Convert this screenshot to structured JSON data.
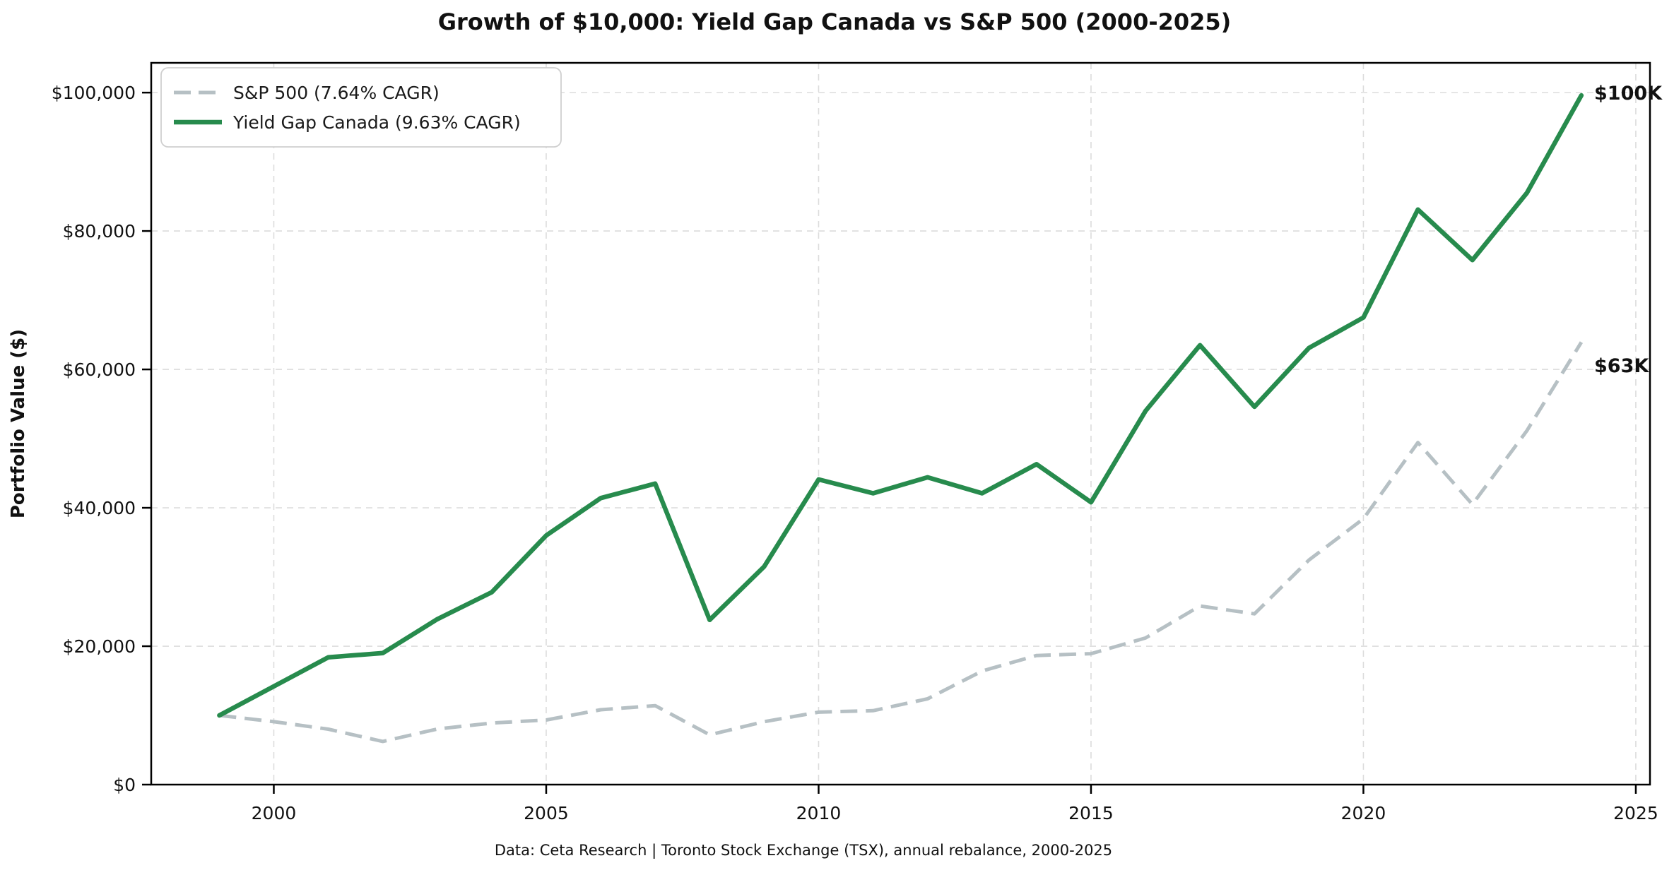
{
  "title": "Growth of $10,000: Yield Gap Canada vs S&P 500 (2000-2025)",
  "footer": "Data: Ceta Research | Toronto Stock Exchange (TSX), annual rebalance, 2000-2025",
  "y_axis": {
    "label": "Portfolio Value ($)",
    "tick_values": [
      0,
      20000,
      40000,
      60000,
      80000,
      100000
    ],
    "tick_labels": [
      "$0",
      "$20,000",
      "$40,000",
      "$60,000",
      "$80,000",
      "$100,000"
    ]
  },
  "x_axis": {
    "tick_values": [
      2000,
      2005,
      2010,
      2015,
      2020,
      2025
    ],
    "tick_labels": [
      "2000",
      "2005",
      "2010",
      "2015",
      "2020",
      "2025"
    ]
  },
  "legend": {
    "items": [
      {
        "label": "S&P 500 (7.64% CAGR)",
        "color": "#b6c0c4",
        "dashed": true
      },
      {
        "label": "Yield Gap Canada (9.63% CAGR)",
        "color": "#278b4d",
        "dashed": false
      }
    ]
  },
  "annotations": [
    {
      "text": "$100K",
      "color": "#278b4d"
    },
    {
      "text": "$63K",
      "color": "#a9b4b8"
    }
  ],
  "colors": {
    "sp500_line": "#b6c0c4",
    "yield_gap_line": "#278b4d",
    "grid": "#dcdcdc",
    "spine": "#000000",
    "footer_text": "#8d989d"
  },
  "chart_data": {
    "type": "line",
    "title": "Growth of $10,000: Yield Gap Canada vs S&P 500 (2000-2025)",
    "xlabel": "",
    "ylabel": "Portfolio Value ($)",
    "x": [
      1999,
      2000,
      2001,
      2002,
      2003,
      2004,
      2005,
      2006,
      2007,
      2008,
      2009,
      2010,
      2011,
      2012,
      2013,
      2014,
      2015,
      2016,
      2017,
      2018,
      2019,
      2020,
      2021,
      2022,
      2023,
      2024
    ],
    "series": [
      {
        "name": "S&P 500 (7.64% CAGR)",
        "color": "#b6c0c4",
        "style": "dashed",
        "values": [
          10000,
          9090,
          8010,
          6240,
          8030,
          8900,
          9340,
          10815,
          11410,
          7190,
          9090,
          10470,
          10690,
          12400,
          16410,
          18660,
          18920,
          21190,
          25810,
          24680,
          32450,
          38420,
          49440,
          40500,
          51140,
          63930
        ]
      },
      {
        "name": "Yield Gap Canada (9.63% CAGR)",
        "color": "#278b4d",
        "style": "solid",
        "values": [
          10000,
          14200,
          18400,
          19000,
          23900,
          27800,
          36000,
          41400,
          43500,
          23800,
          31500,
          44100,
          42100,
          44400,
          42100,
          46300,
          40800,
          54000,
          63500,
          54600,
          63100,
          67500,
          83100,
          75800,
          85500,
          99600
        ]
      }
    ],
    "xlim": [
      1997.75,
      2025.26
    ],
    "ylim": [
      0,
      104300
    ],
    "grid": true,
    "legend_position": "upper-left"
  }
}
